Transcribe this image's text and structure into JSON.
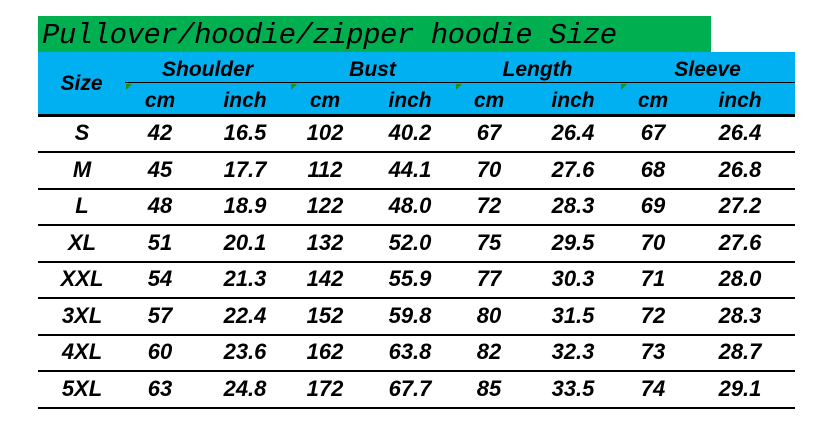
{
  "title": "Pullover/hoodie/zipper hoodie Size",
  "colors": {
    "title_bg": "#00b050",
    "header_bg": "#00b0f0"
  },
  "header": {
    "size": "Size",
    "groups": [
      {
        "label": "Shoulder",
        "units": [
          "cm",
          "inch"
        ]
      },
      {
        "label": "Bust",
        "units": [
          "cm",
          "inch"
        ]
      },
      {
        "label": "Length",
        "units": [
          "cm",
          "inch"
        ]
      },
      {
        "label": "Sleeve",
        "units": [
          "cm",
          "inch"
        ]
      }
    ]
  },
  "rows": [
    [
      "S",
      "42",
      "16.5",
      "102",
      "40.2",
      "67",
      "26.4",
      "67",
      "26.4"
    ],
    [
      "M",
      "45",
      "17.7",
      "112",
      "44.1",
      "70",
      "27.6",
      "68",
      "26.8"
    ],
    [
      "L",
      "48",
      "18.9",
      "122",
      "48.0",
      "72",
      "28.3",
      "69",
      "27.2"
    ],
    [
      "XL",
      "51",
      "20.1",
      "132",
      "52.0",
      "75",
      "29.5",
      "70",
      "27.6"
    ],
    [
      "XXL",
      "54",
      "21.3",
      "142",
      "55.9",
      "77",
      "30.3",
      "71",
      "28.0"
    ],
    [
      "3XL",
      "57",
      "22.4",
      "152",
      "59.8",
      "80",
      "31.5",
      "72",
      "28.3"
    ],
    [
      "4XL",
      "60",
      "23.6",
      "162",
      "63.8",
      "82",
      "32.3",
      "73",
      "28.7"
    ],
    [
      "5XL",
      "63",
      "24.8",
      "172",
      "67.7",
      "85",
      "33.5",
      "74",
      "29.1"
    ]
  ]
}
